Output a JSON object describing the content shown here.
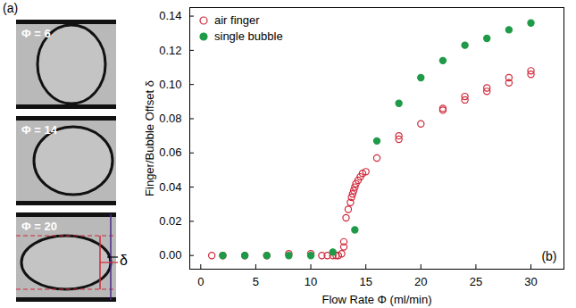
{
  "chart_data": {
    "type": "scatter",
    "x_label": "Flow Rate Φ (ml/min)",
    "y_label": "Finger/Bubble Offset δ",
    "annotations": [
      "(b)"
    ],
    "legend": "top-left",
    "grid": false,
    "xlim": [
      -1,
      33
    ],
    "xticks": [
      0,
      5,
      10,
      15,
      20,
      25,
      30
    ],
    "ylim": [
      -0.008,
      0.145
    ],
    "yticks": [
      {
        "value": 0,
        "label": "0.00"
      },
      {
        "value": 0.02,
        "label": "0.02"
      },
      {
        "value": 0.04,
        "label": "0.04"
      },
      {
        "value": 0.06,
        "label": "0.06"
      },
      {
        "value": 0.08,
        "label": "0.08"
      },
      {
        "value": 0.1,
        "label": "0.10"
      },
      {
        "value": 0.12,
        "label": "0.12"
      },
      {
        "value": 0.14,
        "label": "0.14"
      }
    ],
    "series": [
      {
        "name": "air finger",
        "color": "#d0283a",
        "marker": "open_circle",
        "x": [
          1,
          2,
          4,
          6,
          8,
          10,
          11,
          11.5,
          12,
          12.3,
          12.5,
          12.8,
          13,
          13,
          13.2,
          13.4,
          13.6,
          13.7,
          13.8,
          13.9,
          14,
          14.1,
          14.3,
          14.5,
          14.7,
          15,
          16,
          18,
          18,
          20,
          22,
          22,
          24,
          24,
          26,
          26,
          28,
          28,
          30,
          30
        ],
        "values": [
          0,
          0,
          0,
          0,
          0.001,
          0.001,
          0,
          0,
          0,
          0,
          0,
          0.001,
          0.005,
          0.008,
          0.022,
          0.027,
          0.031,
          0.034,
          0.036,
          0.038,
          0.04,
          0.042,
          0.044,
          0.046,
          0.048,
          0.049,
          0.057,
          0.068,
          0.07,
          0.077,
          0.085,
          0.086,
          0.091,
          0.093,
          0.096,
          0.098,
          0.101,
          0.104,
          0.106,
          0.108
        ]
      },
      {
        "name": "single bubble",
        "color": "#1f9a48",
        "marker": "circle",
        "x": [
          2,
          4,
          6,
          8,
          10,
          12,
          14,
          16,
          18,
          20,
          22,
          24,
          26,
          28,
          30
        ],
        "values": [
          0,
          0,
          0,
          0,
          0,
          0.002,
          0.015,
          0.067,
          0.089,
          0.104,
          0.114,
          0.123,
          0.127,
          0.132,
          0.136
        ]
      }
    ]
  },
  "panel_a": {
    "label": "(a)",
    "frames": [
      "Φ = 6",
      "Φ = 14",
      "Φ = 20"
    ],
    "offset_symbol": "δ"
  }
}
